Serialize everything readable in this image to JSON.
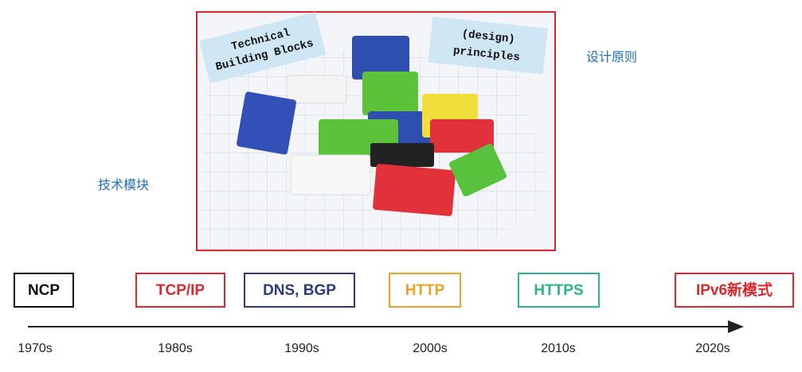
{
  "image": {
    "note_left": [
      "Technical",
      "Building Blocks"
    ],
    "note_right": [
      "(design)",
      "principles"
    ]
  },
  "labels": {
    "principles": "设计原则",
    "blocks": "技术模块"
  },
  "timeline": [
    {
      "label": "NCP",
      "color": "#111111",
      "year": "1970s"
    },
    {
      "label": "TCP/IP",
      "color": "#e0262b",
      "year": "1980s"
    },
    {
      "label": "DNS, BGP",
      "color": "#2e3a78",
      "year": "1990s"
    },
    {
      "label": "HTTP",
      "color": "#f0a023",
      "year": "2000s"
    },
    {
      "label": "HTTPS",
      "color": "#2ab58b",
      "year": "2010s"
    },
    {
      "label": "IPv6新模式",
      "color": "#e0262b",
      "year": "2020s"
    }
  ]
}
